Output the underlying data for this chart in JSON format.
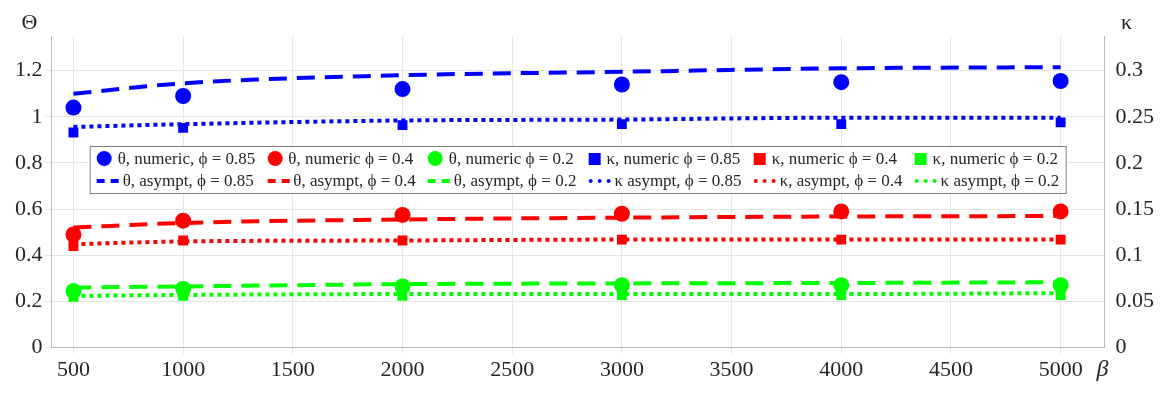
{
  "chart_data": {
    "type": "line",
    "xlabel": "β",
    "ylabel": "Θ",
    "y2label": "κ",
    "xlim": [
      400,
      5200
    ],
    "xticks": [
      500,
      1000,
      1500,
      2000,
      2500,
      3000,
      3500,
      4000,
      4500,
      5000
    ],
    "ylim": [
      0,
      1.35
    ],
    "yticks": [
      0,
      0.2,
      0.4,
      0.6,
      0.8,
      1,
      1.2
    ],
    "y2lim": [
      0,
      0.3375
    ],
    "y2ticks": [
      0,
      0.05,
      0.1,
      0.15,
      0.2,
      0.25,
      0.3
    ],
    "grid": true,
    "legend": "center",
    "x": [
      500,
      1000,
      2000,
      3000,
      4000,
      5000
    ],
    "series": [
      {
        "name": "θ, numeric, ϕ = 0.85",
        "type": "scatter",
        "marker": "circle",
        "color": "#0000ff",
        "values": [
          1.04,
          1.09,
          1.12,
          1.14,
          1.15,
          1.155
        ]
      },
      {
        "name": "θ, numeric ϕ = 0.4",
        "type": "scatter",
        "marker": "circle",
        "color": "#ff0000",
        "values": [
          0.49,
          0.55,
          0.575,
          0.58,
          0.59,
          0.59
        ]
      },
      {
        "name": "θ, numeric ϕ = 0.2",
        "type": "scatter",
        "marker": "circle",
        "color": "#00ff00",
        "values": [
          0.245,
          0.255,
          0.265,
          0.27,
          0.27,
          0.27
        ]
      },
      {
        "name": "κ, numeric ϕ = 0.85",
        "type": "scatter",
        "marker": "square",
        "axis": "y2",
        "color": "#0000ff",
        "values": [
          0.233,
          0.238,
          0.241,
          0.242,
          0.242,
          0.244
        ]
      },
      {
        "name": "κ, numeric ϕ = 0.4",
        "type": "scatter",
        "marker": "square",
        "axis": "y2",
        "color": "#ff0000",
        "values": [
          0.11,
          0.116,
          0.116,
          0.117,
          0.117,
          0.117
        ]
      },
      {
        "name": "κ, numeric ϕ = 0.2",
        "type": "scatter",
        "marker": "square",
        "axis": "y2",
        "color": "#00ff00",
        "values": [
          0.055,
          0.056,
          0.056,
          0.057,
          0.057,
          0.057
        ]
      },
      {
        "name": "θ, asympt, ϕ = 0.85",
        "line_style": "dashed",
        "marker": "none",
        "color": "#0000ff",
        "values": [
          1.1,
          1.145,
          1.18,
          1.195,
          1.21,
          1.215
        ]
      },
      {
        "name": "θ, asympt, ϕ = 0.4",
        "line_style": "dashed",
        "marker": "none",
        "color": "#ff0000",
        "values": [
          0.52,
          0.54,
          0.555,
          0.563,
          0.568,
          0.57
        ]
      },
      {
        "name": "θ, asympt, ϕ = 0.2",
        "line_style": "dashed",
        "marker": "none",
        "color": "#00ff00",
        "values": [
          0.26,
          0.265,
          0.275,
          0.278,
          0.28,
          0.283
        ]
      },
      {
        "name": "κ asympt, ϕ = 0.85",
        "line_style": "dotted",
        "marker": "none",
        "axis": "y2",
        "color": "#0000ff",
        "values": [
          0.239,
          0.242,
          0.246,
          0.247,
          0.249,
          0.249
        ]
      },
      {
        "name": "κ, asympt, ϕ = 0.4",
        "line_style": "dotted",
        "marker": "none",
        "axis": "y2",
        "color": "#ff0000",
        "values": [
          0.112,
          0.115,
          0.116,
          0.117,
          0.117,
          0.117
        ]
      },
      {
        "name": "κ asympt, ϕ = 0.2",
        "line_style": "dotted",
        "marker": "none",
        "axis": "y2",
        "color": "#00ff00",
        "values": [
          0.056,
          0.057,
          0.058,
          0.058,
          0.058,
          0.059
        ]
      }
    ]
  }
}
